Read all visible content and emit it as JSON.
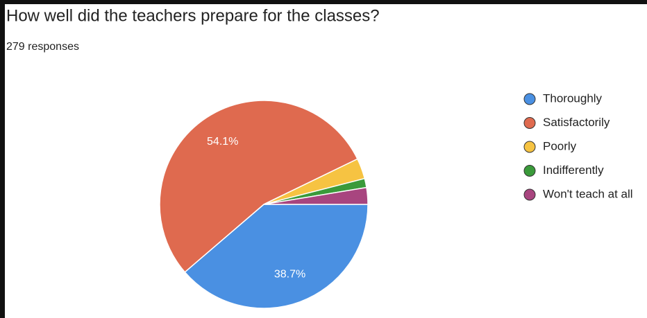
{
  "chart_data": {
    "type": "pie",
    "title": "How well did the teachers prepare for the classes?",
    "subtitle": "279 responses",
    "categories": [
      "Thoroughly",
      "Satisfactorily",
      "Poorly",
      "Indifferently",
      "Won't teach at all"
    ],
    "values": [
      38.7,
      54.1,
      3.2,
      1.4,
      2.6
    ],
    "value_labels": [
      "38.7%",
      "54.1%",
      null,
      null,
      null
    ],
    "colors": [
      "#4a90e2",
      "#df6a4f",
      "#f6c342",
      "#3a9a3a",
      "#a8457f"
    ],
    "legend": "right"
  }
}
